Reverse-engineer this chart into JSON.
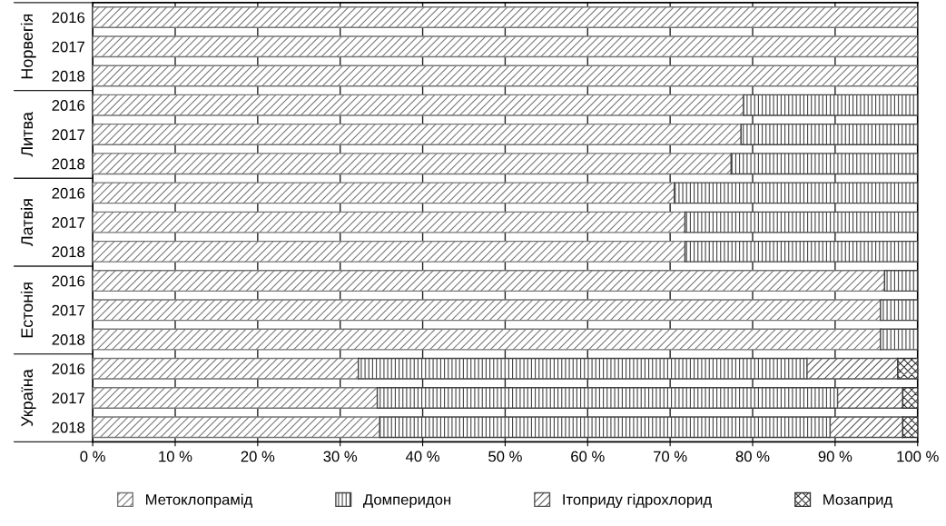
{
  "chart_data": {
    "type": "bar",
    "orientation": "horizontal",
    "stacked": true,
    "categories": [
      "2016",
      "2017",
      "2018",
      "2016",
      "2017",
      "2018",
      "2016",
      "2017",
      "2018",
      "2016",
      "2017",
      "2018",
      "2016",
      "2017",
      "2018"
    ],
    "annotations": [
      "Норвегія",
      "Литва",
      "Латвія",
      "Естонія",
      "Україна"
    ],
    "series": [
      {
        "name": "Метоклопрамід",
        "color": "#777777",
        "values": [
          100,
          100,
          100,
          78.9,
          78.6,
          77.4,
          70.5,
          71.8,
          71.8,
          96.0,
          95.5,
          95.5,
          32.2,
          34.5,
          34.8
        ]
      },
      {
        "name": "Домперидон",
        "color": "#444444",
        "values": [
          0,
          0,
          0,
          21.1,
          21.4,
          22.6,
          29.5,
          28.2,
          28.2,
          4.0,
          4.5,
          4.5,
          54.4,
          55.8,
          54.6
        ]
      },
      {
        "name": "Ітоприду гідрохлорид",
        "color": "#555555",
        "values": [
          0,
          0,
          0,
          0,
          0,
          0,
          0,
          0,
          0,
          0,
          0,
          0,
          11.0,
          7.9,
          8.8
        ]
      },
      {
        "name": "Мозаприд",
        "color": "#333333",
        "values": [
          0,
          0,
          0,
          0,
          0,
          0,
          0,
          0,
          0,
          0,
          0,
          0,
          2.4,
          1.8,
          1.8
        ]
      }
    ],
    "xlim": [
      0,
      100
    ],
    "xticks": [
      {
        "value": 0,
        "label": "0 %"
      },
      {
        "value": 10,
        "label": "10 %"
      },
      {
        "value": 20,
        "label": "20 %"
      },
      {
        "value": 30,
        "label": "30 %"
      },
      {
        "value": 40,
        "label": "40 %"
      },
      {
        "value": 50,
        "label": "50 %"
      },
      {
        "value": 60,
        "label": "60 %"
      },
      {
        "value": 70,
        "label": "70 %"
      },
      {
        "value": 80,
        "label": "80 %"
      },
      {
        "value": 90,
        "label": "90 %"
      },
      {
        "value": 100,
        "label": "100 %"
      }
    ],
    "grid": "x",
    "legend": "bottom"
  }
}
